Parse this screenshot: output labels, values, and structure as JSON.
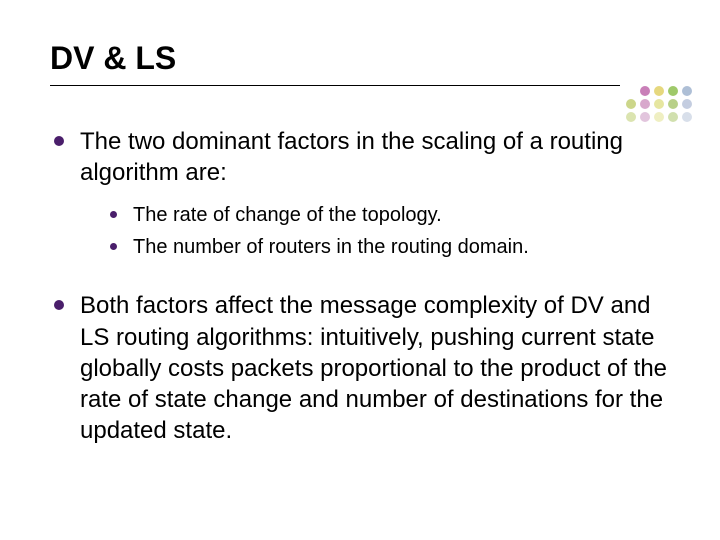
{
  "title": "DV & LS",
  "title_fontsize": 32,
  "title_color": "#000000",
  "body_fontsize_l1": 24,
  "body_fontsize_l2": 20,
  "bullet_color": "#4a1e6b",
  "background_color": "#ffffff",
  "text_color": "#000000",
  "line_color": "#000000",
  "bullets": {
    "b1": "The two dominant factors in the scaling of a routing algorithm are:",
    "b1a": "The rate of change of the topology.",
    "b1b": "The number of routers in the routing domain.",
    "b2": "Both factors affect the message complexity of DV and LS routing algorithms: intuitively, pushing current state globally costs packets proportional to the product of the rate of state change and number of destinations for the updated state."
  },
  "dots": {
    "row1": [
      "#c97fb8",
      "#e6d87e",
      "#9fc96a",
      "#aebfd6"
    ],
    "row2": [
      "#ccd68a",
      "#d8a8cc",
      "#e6e6a0",
      "#b8d088",
      "#c4cde0"
    ],
    "row3": [
      "#dbe4b0",
      "#e2c5dd",
      "#efefc2",
      "#d1e0ae",
      "#d8dfea"
    ]
  }
}
